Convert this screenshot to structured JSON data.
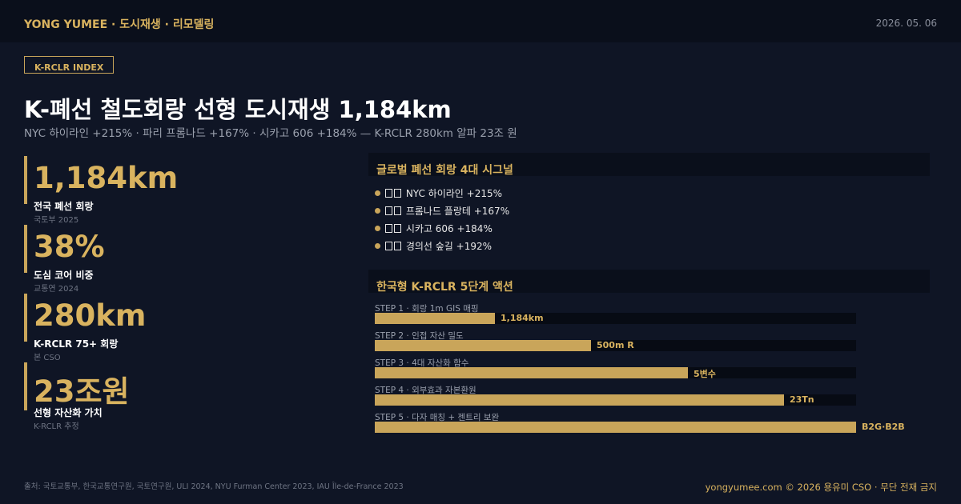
{
  "header": {
    "brand": "YONG YUMEE  ·  도시재생 · 리모델링",
    "date": "2026. 05. 06"
  },
  "index_tag": "K-RCLR INDEX",
  "title": "K-폐선 철도회랑 선형 도시재생 1,184km",
  "subtitle": "NYC 하이라인 +215% · 파리 프롬나드 +167% · 시카고 606 +184% — K-RCLR 280km 알파 23조 원",
  "stats": [
    {
      "value": "1,184km",
      "label": "전국 폐선 회랑",
      "source": "국토부 2025"
    },
    {
      "value": "38%",
      "label": "도심 코어 비중",
      "source": "교통연 2024"
    },
    {
      "value": "280km",
      "label": "K-RCLR 75+ 회랑",
      "source": "본 CSO"
    },
    {
      "value": "23조원",
      "label": "선형 자산화 가치",
      "source": "K-RCLR 추정"
    }
  ],
  "signals": {
    "heading": "글로벌 폐선 회랑 4대 시그널",
    "items": [
      {
        "text": "NYC 하이라인 +215%"
      },
      {
        "text": "프롬나드 플랑테 +167%"
      },
      {
        "text": "시카고 606 +184%"
      },
      {
        "text": "경의선 숲길 +192%"
      }
    ]
  },
  "steps": {
    "heading": "한국형 K-RCLR 5단계 액션",
    "items": [
      {
        "label": "STEP 1 · 회랑 1m GIS 매핑",
        "value": "1,184km",
        "level": 0.25
      },
      {
        "label": "STEP 2 · 인접 자산 밀도",
        "value": "500m R",
        "level": 0.45
      },
      {
        "label": "STEP 3 · 4대 자산화 함수",
        "value": "5변수",
        "level": 0.65
      },
      {
        "label": "STEP 4 · 외부효과 자본환원",
        "value": "23Tn",
        "level": 0.85
      },
      {
        "label": "STEP 5 · 다자 매칭 + 젠트리 보완",
        "value": "B2G·B2B",
        "level": 1.0
      }
    ]
  },
  "footer": {
    "sources": "출처: 국토교통부, 한국교통연구원, 국토연구원, ULI 2024, NYU Furman Center 2023, IAU Île-de-France 2023",
    "copyright": "yongyumee.com © 2026 용유미 CSO · 무단 전재 금지"
  },
  "colors": {
    "accent": "#c9a55a",
    "background": "#0f1525",
    "bar_track": "#070b14"
  }
}
